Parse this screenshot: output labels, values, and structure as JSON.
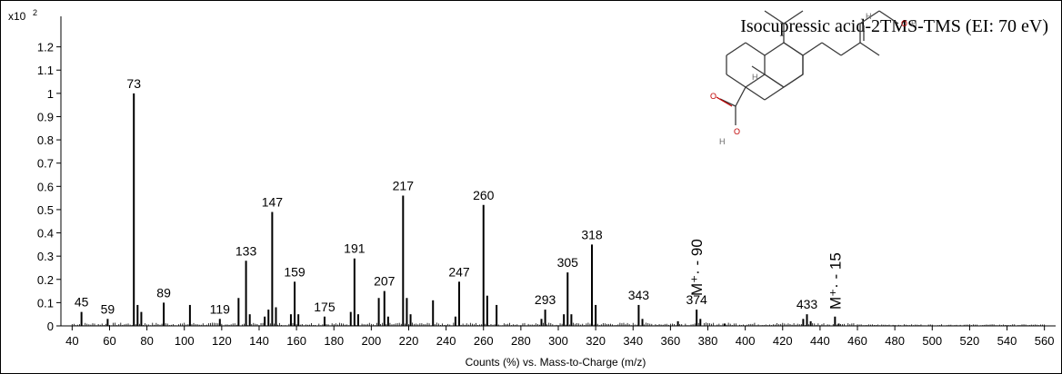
{
  "chart_data": {
    "type": "bar",
    "title": "Isocupressic acid-2TMS-TMS (EI: 70 eV)",
    "xlabel": "Counts (%) vs. Mass-to-Charge (m/z)",
    "ylabel": "",
    "y_scale_label": "x10",
    "y_scale_exponent": "2",
    "xlim": [
      34,
      566
    ],
    "ylim": [
      0,
      1.3
    ],
    "x_ticks": [
      40,
      60,
      80,
      100,
      120,
      140,
      160,
      180,
      200,
      220,
      240,
      260,
      280,
      300,
      320,
      340,
      360,
      380,
      400,
      420,
      440,
      460,
      480,
      500,
      520,
      540,
      560
    ],
    "y_ticks": [
      0,
      0.1,
      0.2,
      0.3,
      0.4,
      0.5,
      0.6,
      0.7,
      0.8,
      0.9,
      1,
      1.1,
      1.2
    ],
    "peaks": [
      {
        "mz": 45,
        "intensity": 0.06,
        "label": "45"
      },
      {
        "mz": 59,
        "intensity": 0.03,
        "label": "59"
      },
      {
        "mz": 73,
        "intensity": 1.0,
        "label": "73"
      },
      {
        "mz": 75,
        "intensity": 0.09
      },
      {
        "mz": 77,
        "intensity": 0.06
      },
      {
        "mz": 89,
        "intensity": 0.1,
        "label": "89"
      },
      {
        "mz": 103,
        "intensity": 0.09
      },
      {
        "mz": 119,
        "intensity": 0.03,
        "label": "119"
      },
      {
        "mz": 129,
        "intensity": 0.12
      },
      {
        "mz": 133,
        "intensity": 0.28,
        "label": "133"
      },
      {
        "mz": 135,
        "intensity": 0.05
      },
      {
        "mz": 143,
        "intensity": 0.04
      },
      {
        "mz": 145,
        "intensity": 0.07
      },
      {
        "mz": 147,
        "intensity": 0.49,
        "label": "147"
      },
      {
        "mz": 149,
        "intensity": 0.08
      },
      {
        "mz": 157,
        "intensity": 0.05
      },
      {
        "mz": 159,
        "intensity": 0.19,
        "label": "159"
      },
      {
        "mz": 161,
        "intensity": 0.05
      },
      {
        "mz": 175,
        "intensity": 0.04,
        "label": "175"
      },
      {
        "mz": 189,
        "intensity": 0.06
      },
      {
        "mz": 191,
        "intensity": 0.29,
        "label": "191"
      },
      {
        "mz": 193,
        "intensity": 0.05
      },
      {
        "mz": 204,
        "intensity": 0.12
      },
      {
        "mz": 207,
        "intensity": 0.15,
        "label": "207"
      },
      {
        "mz": 209,
        "intensity": 0.04
      },
      {
        "mz": 217,
        "intensity": 0.56,
        "label": "217"
      },
      {
        "mz": 219,
        "intensity": 0.12
      },
      {
        "mz": 221,
        "intensity": 0.05
      },
      {
        "mz": 233,
        "intensity": 0.11
      },
      {
        "mz": 245,
        "intensity": 0.04
      },
      {
        "mz": 247,
        "intensity": 0.19,
        "label": "247"
      },
      {
        "mz": 260,
        "intensity": 0.52,
        "label": "260"
      },
      {
        "mz": 262,
        "intensity": 0.13
      },
      {
        "mz": 267,
        "intensity": 0.09
      },
      {
        "mz": 291,
        "intensity": 0.03
      },
      {
        "mz": 293,
        "intensity": 0.07,
        "label": "293"
      },
      {
        "mz": 303,
        "intensity": 0.05
      },
      {
        "mz": 305,
        "intensity": 0.23,
        "label": "305"
      },
      {
        "mz": 307,
        "intensity": 0.05
      },
      {
        "mz": 318,
        "intensity": 0.35,
        "label": "318"
      },
      {
        "mz": 320,
        "intensity": 0.09
      },
      {
        "mz": 343,
        "intensity": 0.09,
        "label": "343"
      },
      {
        "mz": 345,
        "intensity": 0.03
      },
      {
        "mz": 364,
        "intensity": 0.02
      },
      {
        "mz": 374,
        "intensity": 0.07,
        "label": "374"
      },
      {
        "mz": 376,
        "intensity": 0.03
      },
      {
        "mz": 389,
        "intensity": 0.01
      },
      {
        "mz": 431,
        "intensity": 0.03
      },
      {
        "mz": 433,
        "intensity": 0.05,
        "label": "433"
      },
      {
        "mz": 435,
        "intensity": 0.02
      },
      {
        "mz": 448,
        "intensity": 0.04
      },
      {
        "mz": 450,
        "intensity": 0.01
      }
    ],
    "annotations": [
      {
        "text": "M⁺· - 90",
        "mz": 374
      },
      {
        "text": "M⁺· - 15",
        "mz": 448
      }
    ],
    "grid": false,
    "legend": "none",
    "color": "#000000"
  },
  "structure": {
    "atom_labels": [
      "O",
      "H",
      "H",
      "H",
      "O",
      "O",
      "H"
    ]
  }
}
